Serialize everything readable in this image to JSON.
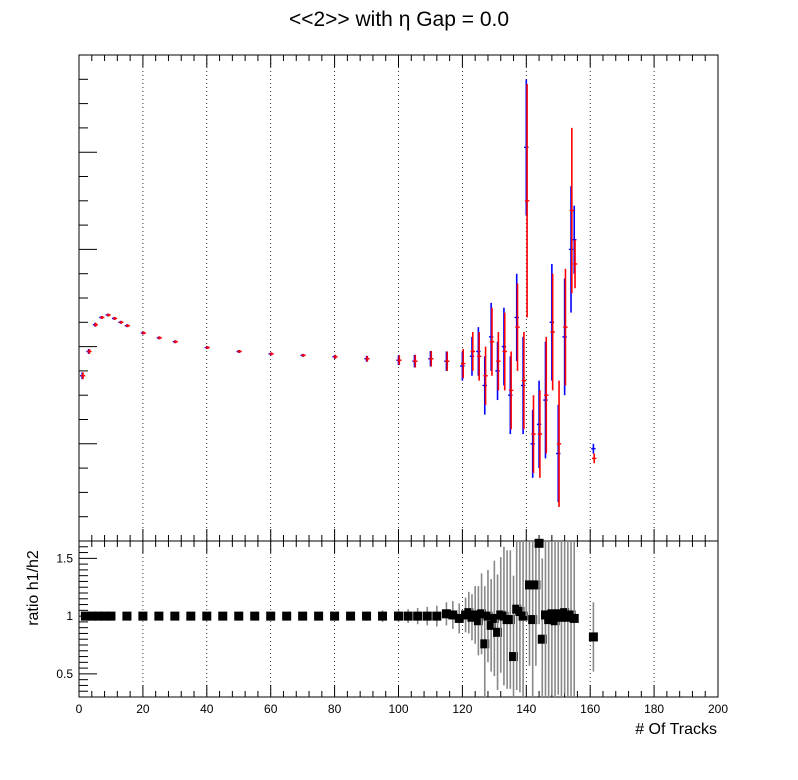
{
  "chart_data": [
    {
      "type": "scatter",
      "title": "<<2>> with η Gap = 0.0",
      "xlabel": "",
      "ylabel": "",
      "xlim": [
        0,
        200
      ],
      "ylim": [
        0,
        1
      ],
      "y_tick_labels_shown": false,
      "grid": "vertical dotted",
      "note": "two overlaid series; y values are relative (axis shows no tick labels)",
      "series": [
        {
          "color": "#0000ff",
          "points": [
            [
              1,
              0.34,
              0.007
            ],
            [
              3,
              0.39,
              0.005
            ],
            [
              5,
              0.445,
              0.004
            ],
            [
              7,
              0.46,
              0.003
            ],
            [
              9,
              0.465,
              0.003
            ],
            [
              11,
              0.458,
              0.003
            ],
            [
              13,
              0.45,
              0.003
            ],
            [
              15,
              0.443,
              0.003
            ],
            [
              20,
              0.428,
              0.003
            ],
            [
              25,
              0.418,
              0.003
            ],
            [
              30,
              0.41,
              0.003
            ],
            [
              40,
              0.398,
              0.003
            ],
            [
              50,
              0.39,
              0.003
            ],
            [
              60,
              0.385,
              0.003
            ],
            [
              70,
              0.382,
              0.003
            ],
            [
              80,
              0.379,
              0.004
            ],
            [
              90,
              0.375,
              0.006
            ],
            [
              100,
              0.372,
              0.01
            ],
            [
              105,
              0.37,
              0.013
            ],
            [
              110,
              0.375,
              0.016
            ],
            [
              115,
              0.37,
              0.02
            ],
            [
              120,
              0.36,
              0.03
            ],
            [
              123,
              0.38,
              0.04
            ],
            [
              125,
              0.39,
              0.05
            ],
            [
              127,
              0.32,
              0.06
            ],
            [
              129,
              0.42,
              0.07
            ],
            [
              131,
              0.35,
              0.06
            ],
            [
              133,
              0.4,
              0.08
            ],
            [
              135,
              0.3,
              0.08
            ],
            [
              137,
              0.46,
              0.09
            ],
            [
              139,
              0.32,
              0.1
            ],
            [
              140,
              0.81,
              0.14
            ],
            [
              142,
              0.2,
              0.07
            ],
            [
              144,
              0.24,
              0.09
            ],
            [
              146,
              0.29,
              0.12
            ],
            [
              148,
              0.45,
              0.12
            ],
            [
              150,
              0.18,
              0.1
            ],
            [
              152,
              0.42,
              0.12
            ],
            [
              154,
              0.6,
              0.13
            ],
            [
              155,
              0.62,
              0.07
            ],
            [
              161,
              0.19,
              0.01
            ]
          ]
        },
        {
          "color": "#ff0000",
          "points": [
            [
              1,
              0.34,
              0.007
            ],
            [
              3,
              0.39,
              0.005
            ],
            [
              5,
              0.445,
              0.004
            ],
            [
              7,
              0.46,
              0.003
            ],
            [
              9,
              0.465,
              0.003
            ],
            [
              11,
              0.458,
              0.003
            ],
            [
              13,
              0.45,
              0.003
            ],
            [
              15,
              0.443,
              0.003
            ],
            [
              20,
              0.428,
              0.003
            ],
            [
              25,
              0.418,
              0.003
            ],
            [
              30,
              0.41,
              0.003
            ],
            [
              40,
              0.398,
              0.003
            ],
            [
              50,
              0.39,
              0.003
            ],
            [
              60,
              0.385,
              0.003
            ],
            [
              70,
              0.382,
              0.003
            ],
            [
              80,
              0.379,
              0.004
            ],
            [
              90,
              0.375,
              0.006
            ],
            [
              100,
              0.372,
              0.01
            ],
            [
              105,
              0.37,
              0.013
            ],
            [
              110,
              0.375,
              0.016
            ],
            [
              115,
              0.37,
              0.02
            ],
            [
              120,
              0.365,
              0.03
            ],
            [
              123,
              0.39,
              0.04
            ],
            [
              125,
              0.38,
              0.05
            ],
            [
              127,
              0.34,
              0.06
            ],
            [
              129,
              0.41,
              0.07
            ],
            [
              131,
              0.37,
              0.06
            ],
            [
              133,
              0.39,
              0.08
            ],
            [
              135,
              0.31,
              0.08
            ],
            [
              137,
              0.44,
              0.09
            ],
            [
              139,
              0.33,
              0.1
            ],
            [
              140,
              0.7,
              0.24
            ],
            [
              142,
              0.22,
              0.08
            ],
            [
              144,
              0.22,
              0.09
            ],
            [
              146,
              0.3,
              0.12
            ],
            [
              148,
              0.43,
              0.12
            ],
            [
              150,
              0.2,
              0.13
            ],
            [
              152,
              0.44,
              0.12
            ],
            [
              154,
              0.68,
              0.17
            ],
            [
              155,
              0.57,
              0.05
            ],
            [
              161,
              0.17,
              0.01
            ]
          ]
        }
      ]
    },
    {
      "type": "scatter",
      "title": "",
      "xlabel": "# Of Tracks",
      "ylabel": "ratio h1/h2",
      "xlim": [
        0,
        200
      ],
      "ylim": [
        0.3,
        1.65
      ],
      "x_ticks": [
        0,
        20,
        40,
        60,
        80,
        100,
        120,
        140,
        160,
        180,
        200
      ],
      "x_tick_labels": [
        "0",
        "20",
        "40",
        "60",
        "80",
        "100",
        "120",
        "140",
        "160",
        "180",
        "200"
      ],
      "y_ticks": [
        0.5,
        1,
        1.5
      ],
      "y_tick_labels": [
        "0.5",
        "1",
        "1.5"
      ],
      "grid": "vertical dotted",
      "series": [
        {
          "color": "#000000",
          "marker": "square",
          "points": [
            [
              2,
              1.0,
              0.01
            ],
            [
              4,
              1.0,
              0.01
            ],
            [
              6,
              1.0,
              0.01
            ],
            [
              8,
              1.0,
              0.01
            ],
            [
              10,
              1.0,
              0.01
            ],
            [
              15,
              1.0,
              0.01
            ],
            [
              20,
              1.0,
              0.01
            ],
            [
              25,
              1.0,
              0.01
            ],
            [
              30,
              1.0,
              0.01
            ],
            [
              35,
              1.0,
              0.01
            ],
            [
              40,
              1.0,
              0.01
            ],
            [
              45,
              1.0,
              0.01
            ],
            [
              50,
              1.0,
              0.01
            ],
            [
              55,
              1.0,
              0.015
            ],
            [
              60,
              1.0,
              0.02
            ],
            [
              65,
              1.0,
              0.02
            ],
            [
              70,
              1.0,
              0.02
            ],
            [
              75,
              1.0,
              0.02
            ],
            [
              80,
              1.0,
              0.03
            ],
            [
              85,
              1.0,
              0.03
            ],
            [
              90,
              1.0,
              0.04
            ],
            [
              95,
              1.0,
              0.05
            ],
            [
              100,
              1.0,
              0.05
            ],
            [
              103,
              1.0,
              0.06
            ],
            [
              106,
              1.0,
              0.07
            ],
            [
              109,
              1.0,
              0.08
            ],
            [
              112,
              1.0,
              0.09
            ],
            [
              115,
              1.02,
              0.1
            ],
            [
              117,
              1.01,
              0.12
            ],
            [
              119,
              0.98,
              0.13
            ],
            [
              121,
              1.01,
              0.15
            ],
            [
              122,
              1.03,
              0.18
            ],
            [
              123,
              0.99,
              0.2
            ],
            [
              124,
              1.01,
              0.25
            ],
            [
              125,
              0.96,
              0.3
            ],
            [
              126,
              1.02,
              0.35
            ],
            [
              127,
              0.76,
              0.5
            ],
            [
              128,
              1.0,
              0.4
            ],
            [
              129,
              0.92,
              0.4
            ],
            [
              130,
              0.98,
              0.5
            ],
            [
              131,
              0.86,
              0.5
            ],
            [
              132,
              1.01,
              0.5
            ],
            [
              133,
              1.0,
              0.6
            ],
            [
              134,
              0.97,
              0.6
            ],
            [
              135,
              0.97,
              0.6
            ],
            [
              136,
              0.65,
              0.7
            ],
            [
              137,
              1.06,
              0.7
            ],
            [
              138,
              1.04,
              0.7
            ],
            [
              139,
              1.0,
              0.7
            ],
            [
              140,
              1.7,
              0.7
            ],
            [
              141,
              1.27,
              0.7
            ],
            [
              142,
              0.97,
              0.7
            ],
            [
              143,
              1.27,
              0.7
            ],
            [
              144,
              1.63,
              0.7
            ],
            [
              145,
              0.8,
              0.7
            ],
            [
              146,
              1.01,
              0.7
            ],
            [
              147,
              0.97,
              0.7
            ],
            [
              148,
              1.02,
              0.7
            ],
            [
              149,
              0.96,
              0.7
            ],
            [
              150,
              1.02,
              0.7
            ],
            [
              151,
              0.99,
              0.7
            ],
            [
              152,
              1.03,
              0.7
            ],
            [
              153,
              0.99,
              0.7
            ],
            [
              154,
              1.01,
              0.7
            ],
            [
              155,
              0.98,
              0.7
            ],
            [
              161,
              0.82,
              0.3
            ]
          ]
        }
      ]
    }
  ]
}
